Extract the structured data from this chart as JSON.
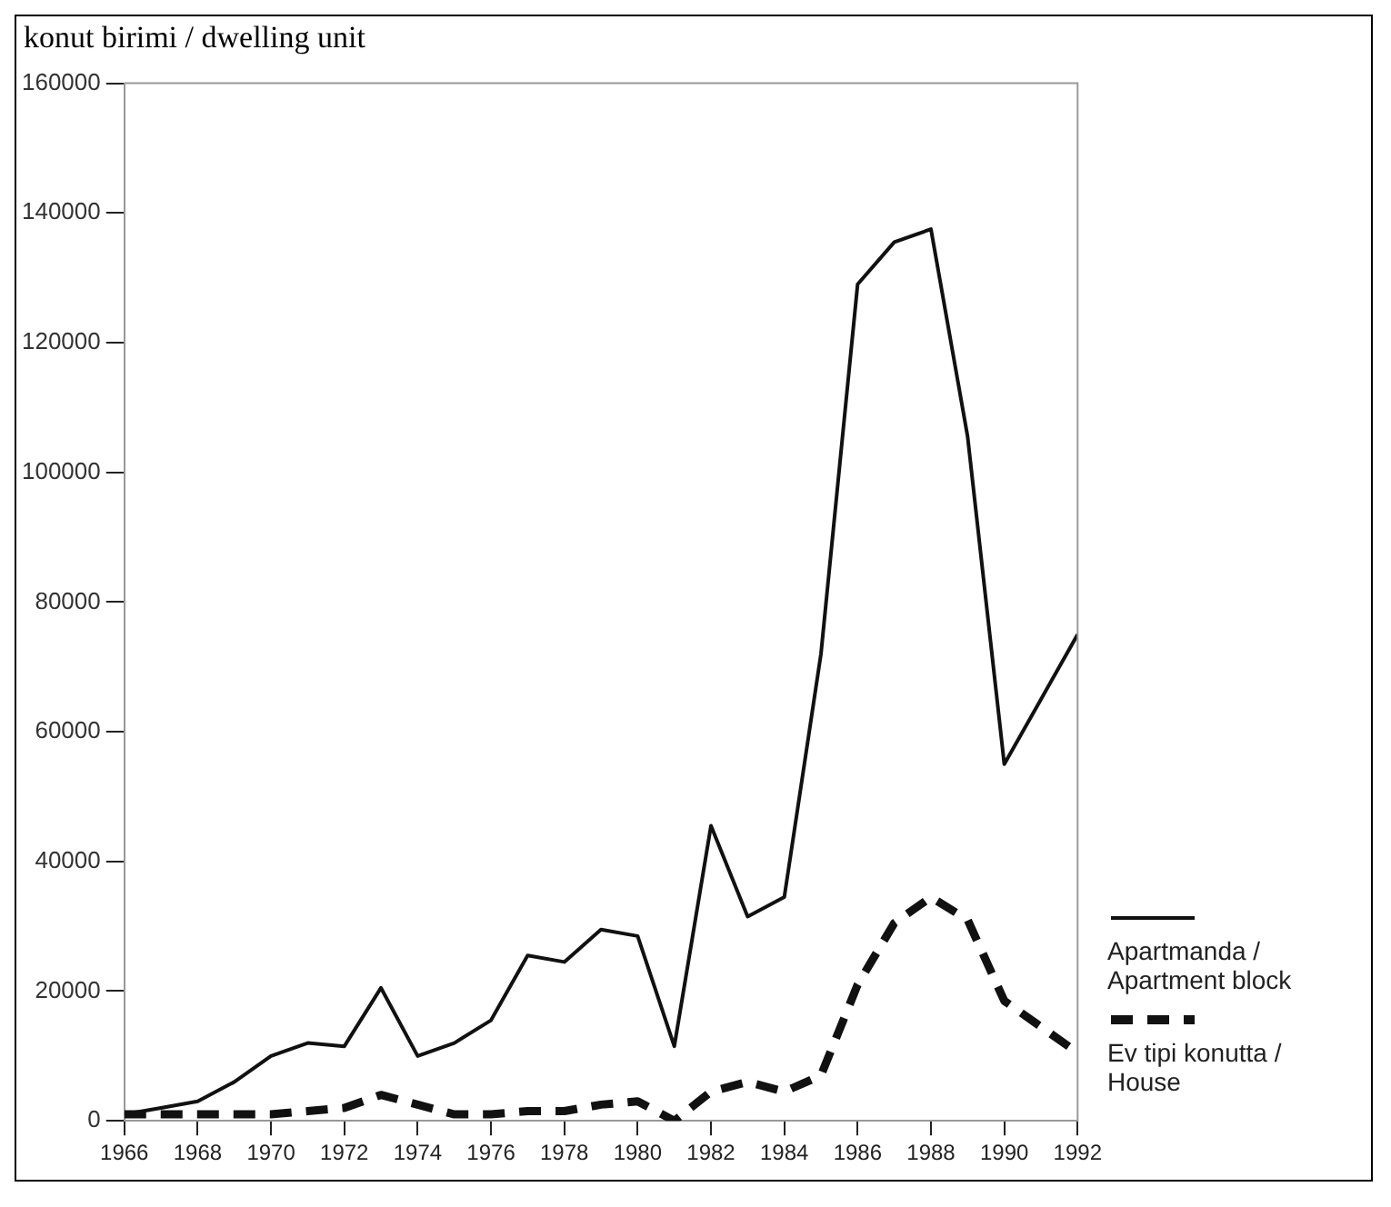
{
  "chart_data": {
    "type": "line",
    "ylabel": "konut birimi / dwelling unit",
    "xlim": [
      1966,
      1992
    ],
    "xticks": [
      1966,
      1968,
      1970,
      1972,
      1974,
      1976,
      1978,
      1980,
      1982,
      1984,
      1986,
      1988,
      1990,
      1992
    ],
    "ylim": [
      0,
      160000
    ],
    "yticks": [
      0,
      20000,
      40000,
      60000,
      80000,
      100000,
      120000,
      140000,
      160000
    ],
    "grid": false,
    "legend": "right",
    "marker": "none",
    "series": [
      {
        "name": "Apartmanda / Apartment block",
        "color": "#111111",
        "line_style": "solid",
        "x": [
          1966,
          1967,
          1968,
          1969,
          1970,
          1971,
          1972,
          1973,
          1974,
          1975,
          1976,
          1977,
          1978,
          1979,
          1980,
          1981,
          1982,
          1983,
          1984,
          1985,
          1986,
          1987,
          1988,
          1989,
          1990,
          1991,
          1992
        ],
        "values": [
          1000,
          2000,
          3000,
          6000,
          10000,
          12000,
          11500,
          20500,
          10000,
          12000,
          15500,
          25500,
          24500,
          29500,
          28500,
          11500,
          45500,
          31500,
          34500,
          72000,
          129000,
          135500,
          137500,
          105500,
          55000,
          65000,
          75000
        ]
      },
      {
        "name": "Ev tipi konutta / House",
        "color": "#111111",
        "line_style": "dashed",
        "x": [
          1966,
          1967,
          1968,
          1969,
          1970,
          1971,
          1972,
          1973,
          1974,
          1975,
          1976,
          1977,
          1978,
          1979,
          1980,
          1981,
          1982,
          1983,
          1984,
          1985,
          1986,
          1987,
          1988,
          1989,
          1990,
          1991,
          1992
        ],
        "values": [
          1000,
          1000,
          1000,
          1000,
          1000,
          1500,
          2000,
          4000,
          2500,
          1000,
          1000,
          1500,
          1500,
          2500,
          3000,
          0,
          4500,
          6000,
          4500,
          7000,
          21000,
          30500,
          34500,
          31000,
          18500,
          14500,
          10500
        ]
      }
    ]
  }
}
